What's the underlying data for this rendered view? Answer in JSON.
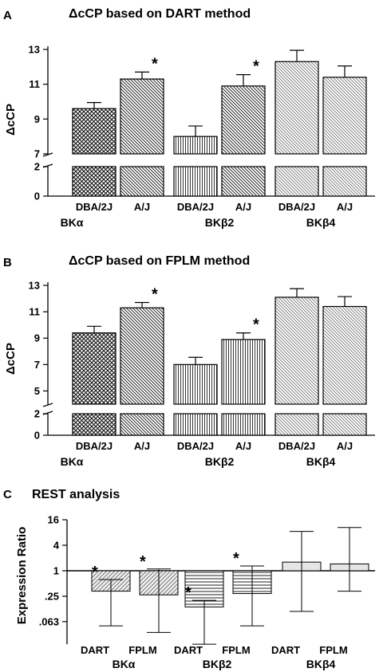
{
  "chart_data": [
    {
      "type": "bar",
      "panel": "A",
      "title": "ΔcCP based on DART method",
      "ylabel": "ΔcCP",
      "ylim": [
        0,
        13
      ],
      "y_axis_break": [
        2,
        7
      ],
      "yticks": [
        0,
        2,
        7,
        9,
        11,
        13
      ],
      "categories": [
        "DBA/2J",
        "A/J",
        "DBA/2J",
        "A/J",
        "DBA/2J",
        "A/J"
      ],
      "groups": [
        "BKα",
        "BKβ2",
        "BKβ4"
      ],
      "values": [
        9.6,
        11.3,
        8.0,
        10.9,
        12.3,
        11.4
      ],
      "errors": [
        0.35,
        0.4,
        0.6,
        0.65,
        0.65,
        0.65
      ],
      "significant": [
        false,
        true,
        false,
        true,
        false,
        false
      ],
      "star": "*"
    },
    {
      "type": "bar",
      "panel": "B",
      "title": "ΔcCP based on FPLM method",
      "ylabel": "ΔcCP",
      "ylim": [
        0,
        13
      ],
      "y_axis_break": [
        2,
        4
      ],
      "yticks": [
        0,
        2,
        5,
        7,
        9,
        11,
        13
      ],
      "categories": [
        "DBA/2J",
        "A/J",
        "DBA/2J",
        "A/J",
        "DBA/2J",
        "A/J"
      ],
      "groups": [
        "BKα",
        "BKβ2",
        "BKβ4"
      ],
      "values": [
        9.4,
        11.3,
        7.0,
        8.9,
        12.1,
        11.4
      ],
      "errors": [
        0.5,
        0.4,
        0.55,
        0.5,
        0.65,
        0.75
      ],
      "significant": [
        false,
        true,
        false,
        true,
        false,
        false
      ],
      "star": "*"
    },
    {
      "type": "bar",
      "panel": "C",
      "title": "REST analysis",
      "ylabel": "Expression Ratio",
      "yscale": "log2",
      "ylim": [
        0.031,
        16
      ],
      "yticks": [
        0.063,
        0.25,
        1,
        4,
        16
      ],
      "ytick_labels": [
        ".063",
        ".25",
        "1",
        "4",
        "16"
      ],
      "categories": [
        "DART",
        "FPLM",
        "DART",
        "FPLM",
        "DART",
        "FPLM"
      ],
      "groups": [
        "BKα",
        "BKβ2",
        "BKβ4"
      ],
      "values": [
        0.33,
        0.27,
        0.14,
        0.29,
        1.6,
        1.45
      ],
      "ci_low": [
        0.05,
        0.035,
        0.0185,
        0.05,
        0.11,
        0.33
      ],
      "ci_high": [
        0.62,
        1.1,
        0.2,
        1.3,
        8.5,
        10.5
      ],
      "significant": [
        true,
        true,
        true,
        true,
        false,
        false
      ],
      "star": "*"
    }
  ],
  "colors": {
    "hatch_dark": "#111111",
    "hatch_light": "#777777",
    "panel_c_bar_fill": "#e6e6e6"
  }
}
